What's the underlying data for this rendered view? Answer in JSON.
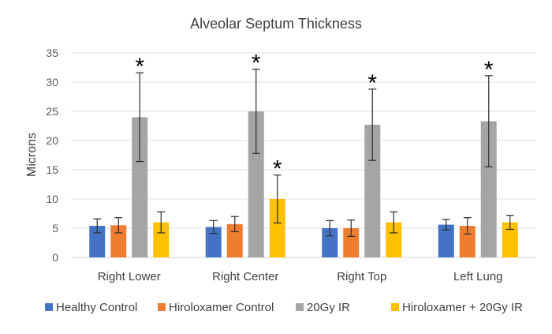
{
  "chart_data": {
    "type": "bar",
    "title": "Alveolar Septum Thickness",
    "xlabel": "",
    "ylabel": "Microns",
    "ylim": [
      0,
      35
    ],
    "yticks": [
      0,
      5,
      10,
      15,
      20,
      25,
      30,
      35
    ],
    "grid": true,
    "legend_position": "bottom",
    "categories": [
      "Right Lower",
      "Right Center",
      "Right Top",
      "Left Lung"
    ],
    "series": [
      {
        "name": "Healthy Control",
        "color": "#4472C4",
        "values": [
          5.4,
          5.2,
          5.0,
          5.6
        ],
        "errors": [
          1.2,
          1.1,
          1.3,
          0.9
        ],
        "significant": [
          false,
          false,
          false,
          false
        ]
      },
      {
        "name": "Hiroloxamer Control",
        "color": "#ED7D31",
        "values": [
          5.5,
          5.7,
          5.0,
          5.4
        ],
        "errors": [
          1.3,
          1.3,
          1.4,
          1.4
        ],
        "significant": [
          false,
          false,
          false,
          false
        ]
      },
      {
        "name": "20Gy IR",
        "color": "#A5A5A5",
        "values": [
          24.0,
          25.0,
          22.7,
          23.3
        ],
        "errors": [
          7.6,
          7.2,
          6.1,
          7.8
        ],
        "significant": [
          true,
          true,
          true,
          true
        ]
      },
      {
        "name": "Hiroloxamer + 20Gy IR",
        "color": "#FFC000",
        "values": [
          6.0,
          10.0,
          6.0,
          6.0
        ],
        "errors": [
          1.8,
          4.1,
          1.8,
          1.2
        ],
        "significant": [
          false,
          true,
          false,
          false
        ]
      }
    ],
    "significance_marker": "*"
  }
}
